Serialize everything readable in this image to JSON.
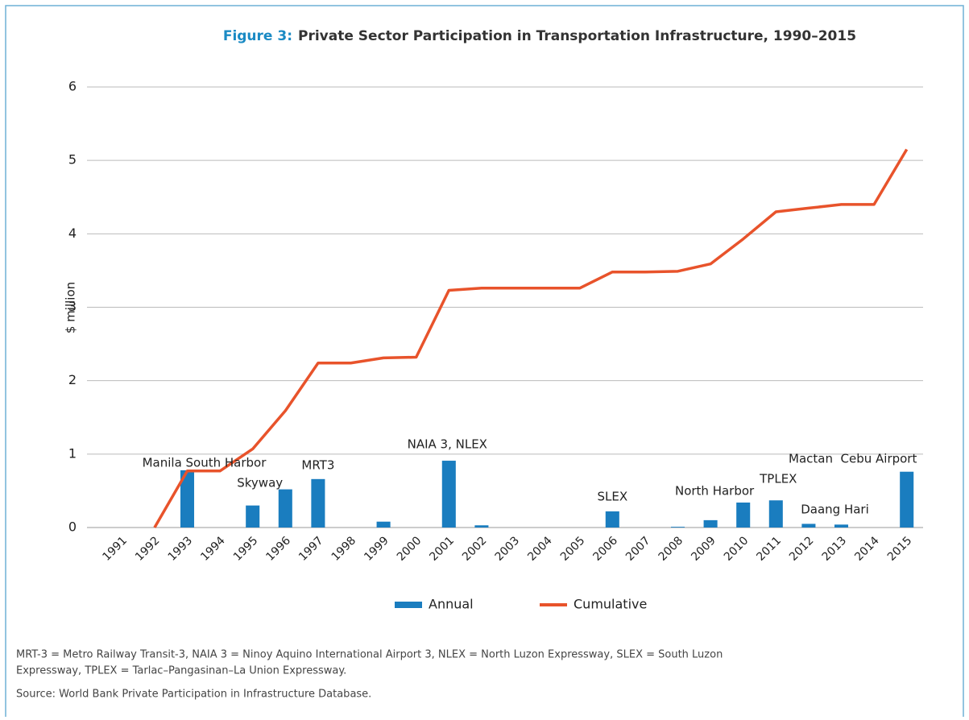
{
  "chart_data": {
    "type": "bar_line",
    "title_label": "Figure 3:",
    "title": "Private Sector Participation in Transportation Infrastructure, 1990–2015",
    "ylabel": "$ million",
    "categories": [
      "1991",
      "1992",
      "1993",
      "1994",
      "1995",
      "1996",
      "1997",
      "1998",
      "1999",
      "2000",
      "2001",
      "2002",
      "2003",
      "2004",
      "2005",
      "2006",
      "2007",
      "2008",
      "2009",
      "2010",
      "2011",
      "2012",
      "2013",
      "2014",
      "2015"
    ],
    "series": [
      {
        "name": "Annual",
        "kind": "bar",
        "color": "#1a7dbf",
        "values": [
          0,
          0,
          0.78,
          0,
          0.3,
          0.52,
          0.66,
          0,
          0.08,
          0,
          0.91,
          0.03,
          0,
          0,
          0,
          0.22,
          0,
          0.01,
          0.1,
          0.34,
          0.37,
          0.05,
          0.04,
          0,
          0.76
        ]
      },
      {
        "name": "Cumulative",
        "kind": "line",
        "color": "#e8532b",
        "values": [
          null,
          0,
          0.77,
          0.77,
          1.07,
          1.59,
          2.24,
          2.24,
          2.31,
          2.32,
          3.23,
          3.26,
          3.26,
          3.26,
          3.26,
          3.48,
          3.48,
          3.49,
          3.59,
          3.93,
          4.3,
          4.35,
          4.4,
          4.4,
          5.15
        ]
      }
    ],
    "annotations": [
      {
        "text": "Manila South Harbor",
        "x": "1993"
      },
      {
        "text": "Skyway",
        "x": "1995"
      },
      {
        "text": "MRT3",
        "x": "1997"
      },
      {
        "text": "NAIA 3, NLEX",
        "x": "2001"
      },
      {
        "text": "SLEX",
        "x": "2006"
      },
      {
        "text": "North Harbor",
        "x": "2009"
      },
      {
        "text": "TPLEX",
        "x": "2011"
      },
      {
        "text": "Daang Hari",
        "x": "2013"
      },
      {
        "text": "Mactan  Cebu Airport",
        "x": "2015"
      }
    ],
    "ylim": [
      0,
      6
    ],
    "yticks": [
      0,
      1,
      2,
      3,
      4,
      5,
      6
    ],
    "grid": true,
    "legend": "bottom",
    "notes": [
      "MRT-3 = Metro Railway Transit-3, NAIA 3 = Ninoy Aquino International Airport 3, NLEX = North Luzon Expressway, SLEX = South Luzon",
      "Expressway, TPLEX = Tarlac–Pangasinan–La Union Expressway."
    ],
    "source": "Source: World Bank Private Participation in Infrastructure Database."
  }
}
